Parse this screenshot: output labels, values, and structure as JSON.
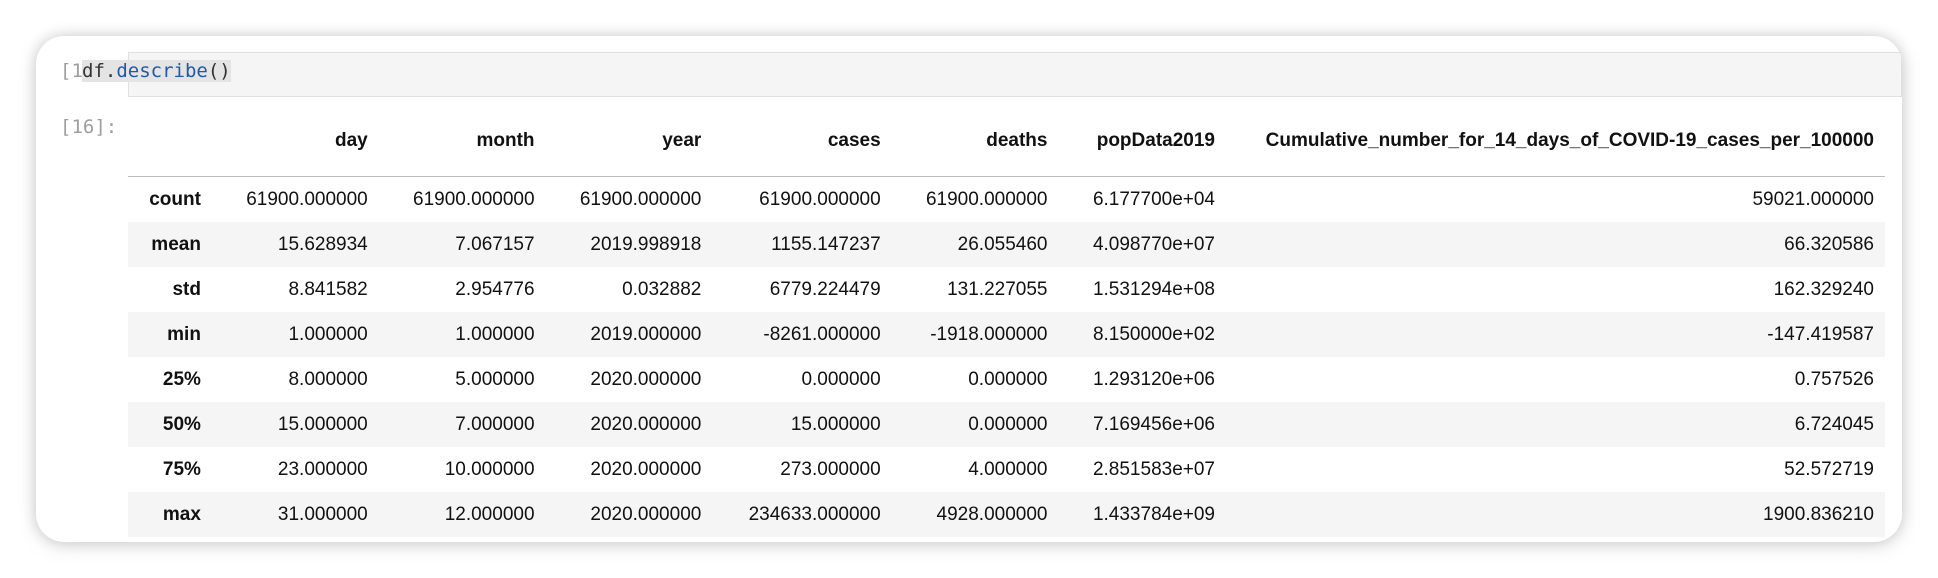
{
  "cell": {
    "input_prompt": "[16]:",
    "output_prompt": "[16]:",
    "code_object": "df",
    "code_dot": ".",
    "code_method": "describe",
    "code_parens": "()"
  },
  "table": {
    "columns": [
      "day",
      "month",
      "year",
      "cases",
      "deaths",
      "popData2019",
      "Cumulative_number_for_14_days_of_COVID-19_cases_per_100000"
    ],
    "rows": [
      {
        "label": "count",
        "values": [
          "61900.000000",
          "61900.000000",
          "61900.000000",
          "61900.000000",
          "61900.000000",
          "6.177700e+04",
          "59021.000000"
        ]
      },
      {
        "label": "mean",
        "values": [
          "15.628934",
          "7.067157",
          "2019.998918",
          "1155.147237",
          "26.055460",
          "4.098770e+07",
          "66.320586"
        ]
      },
      {
        "label": "std",
        "values": [
          "8.841582",
          "2.954776",
          "0.032882",
          "6779.224479",
          "131.227055",
          "1.531294e+08",
          "162.329240"
        ]
      },
      {
        "label": "min",
        "values": [
          "1.000000",
          "1.000000",
          "2019.000000",
          "-8261.000000",
          "-1918.000000",
          "8.150000e+02",
          "-147.419587"
        ]
      },
      {
        "label": "25%",
        "values": [
          "8.000000",
          "5.000000",
          "2020.000000",
          "0.000000",
          "0.000000",
          "1.293120e+06",
          "0.757526"
        ]
      },
      {
        "label": "50%",
        "values": [
          "15.000000",
          "7.000000",
          "2020.000000",
          "15.000000",
          "0.000000",
          "7.169456e+06",
          "6.724045"
        ]
      },
      {
        "label": "75%",
        "values": [
          "23.000000",
          "10.000000",
          "2020.000000",
          "273.000000",
          "4.000000",
          "2.851583e+07",
          "52.572719"
        ]
      },
      {
        "label": "max",
        "values": [
          "31.000000",
          "12.000000",
          "2020.000000",
          "234633.000000",
          "4928.000000",
          "1.433784e+09",
          "1900.836210"
        ]
      }
    ]
  }
}
